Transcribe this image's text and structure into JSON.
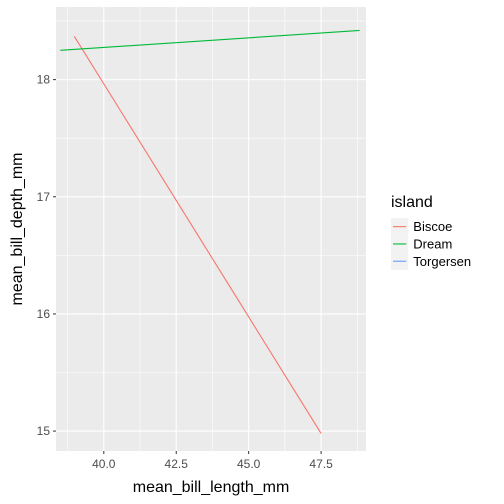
{
  "chart_data": {
    "type": "line",
    "xlabel": "mean_bill_length_mm",
    "ylabel": "mean_bill_depth_mm",
    "xlim": [
      38.35,
      49.05
    ],
    "ylim": [
      14.83,
      18.62
    ],
    "x_ticks": [
      40.0,
      42.5,
      45.0,
      47.5
    ],
    "x_tick_labels": [
      "40.0",
      "42.5",
      "45.0",
      "47.5"
    ],
    "y_ticks": [
      15,
      16,
      17,
      18
    ],
    "y_tick_labels": [
      "15",
      "16",
      "17",
      "18"
    ],
    "grid": true,
    "legend": {
      "title": "island",
      "position": "right"
    },
    "series": [
      {
        "name": "Biscoe",
        "color": "#F8766D",
        "x": [
          38.98,
          47.5
        ],
        "y": [
          18.37,
          14.98
        ]
      },
      {
        "name": "Dream",
        "color": "#00BA38",
        "x": [
          38.5,
          48.83
        ],
        "y": [
          18.25,
          18.42
        ]
      },
      {
        "name": "Torgersen",
        "color": "#619CFF",
        "x": [],
        "y": []
      }
    ]
  }
}
